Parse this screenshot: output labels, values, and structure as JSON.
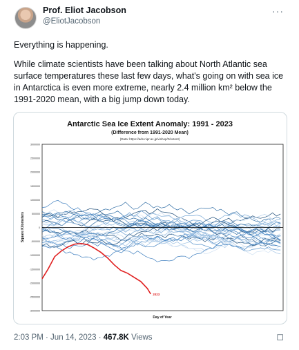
{
  "tweet": {
    "author_name": "Prof. Eliot Jacobson",
    "author_handle": "@EliotJacobson",
    "text_line1": "Everything is happening.",
    "text_para2": "While climate scientists have been talking about North Atlantic sea surface temperatures these last few days, what's going on with sea ice in Antarctica is even more extreme, nearly 2.4 million km² below the 1991-2020 mean, with a big jump down today.",
    "time": "2:03 PM · Jun 14, 2023 · ",
    "views_count": "467.8K",
    "views_label": " Views",
    "more_icon": "···",
    "bookmark_icon": "bookmark-icon"
  },
  "chart_data": {
    "type": "line",
    "title": "Antarctic Sea Ice Extent Anomaly: 1991 - 2023",
    "subtitle": "(Difference from 1991-2020 Mean)",
    "source": "(Data: https://ads.nipr.ac.jp/vishop/#/extent)",
    "xlabel": "Day of Year",
    "ylabel": "Square Kilometers",
    "ylim": [
      -3000000,
      3000000
    ],
    "yticks": [
      "3000000",
      "2500000",
      "2000000",
      "1500000",
      "1000000",
      "500000",
      "0",
      "-500000",
      "-1000000",
      "-1500000",
      "-2000000",
      "-2500000",
      "-3000000"
    ],
    "xlim": [
      1,
      365
    ],
    "grid": false,
    "highlight_series": {
      "name": "2023",
      "color": "#e02020",
      "x": [
        1,
        10,
        20,
        30,
        40,
        50,
        60,
        70,
        80,
        90,
        100,
        110,
        120,
        130,
        140,
        150,
        160,
        165
      ],
      "y": [
        -1850000,
        -1500000,
        -1050000,
        -850000,
        -700000,
        -600000,
        -580000,
        -620000,
        -750000,
        -900000,
        -1100000,
        -1350000,
        -1550000,
        -1650000,
        -1800000,
        -1950000,
        -2200000,
        -2400000
      ]
    }
  }
}
